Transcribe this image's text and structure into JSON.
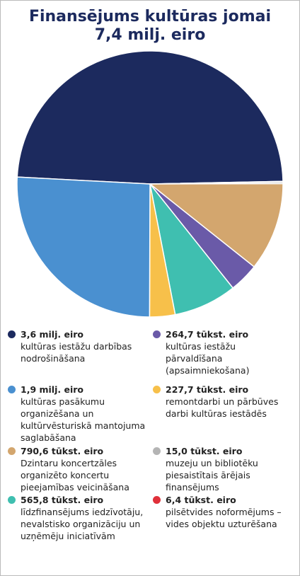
{
  "chart_data": {
    "type": "pie",
    "title": "Finansējums kultūras jomai",
    "subtitle": "7,4 milj. eiro",
    "categories": [
      "kultūras iestāžu darbības nodrošināšana",
      "pilsētvides noformējums – vides objektu uzturēšana",
      "muzeju un bibliotēku piesaistītais ārējais finansējums",
      "Dzintaru koncertzāles organizēto koncertu pieejamības veicināšana",
      "kultūras iestāžu pārvaldīšana (apsaimniekošana)",
      "līdzfinansējums iedzīvotāju, nevalstisko organizāciju un uzņēmēju iniciatīvām",
      "remontdarbi un pārbūves darbi kultūras iestādēs",
      "kultūras pasākumu organizēšana un kultūrvēsturiskā mantojuma saglabāšana"
    ],
    "values": [
      3600,
      6.4,
      15.0,
      790.6,
      264.7,
      565.8,
      227.7,
      1900
    ],
    "value_labels": [
      "3,6 milj. eiro",
      "6,4 tūkst. eiro",
      "15,0 tūkst. eiro",
      "790,6 tūkst. eiro",
      "264,7 tūkst. eiro",
      "565,8 tūkst. eiro",
      "227,7 tūkst. eiro",
      "1,9 milj. eiro"
    ],
    "colors": [
      "#1c2a5e",
      "#e0303a",
      "#b4b4b4",
      "#d3a66e",
      "#6a5aa8",
      "#3fbfb0",
      "#f7c04a",
      "#4a90d0"
    ]
  }
}
